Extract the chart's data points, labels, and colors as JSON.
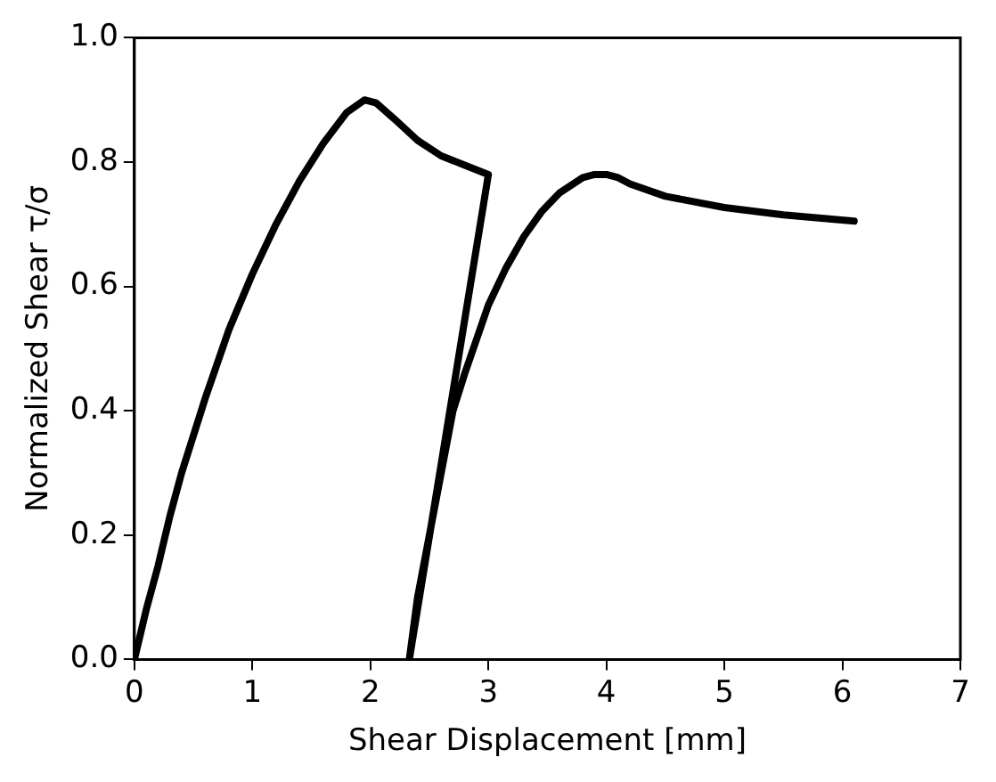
{
  "chart_data": {
    "type": "line",
    "xlabel": "Shear Displacement [mm]",
    "ylabel": "Normalized Shear τ/σ",
    "xlim": [
      0,
      7
    ],
    "ylim": [
      0,
      1
    ],
    "xticks": [
      0,
      1,
      2,
      3,
      4,
      5,
      6,
      7
    ],
    "yticks": [
      {
        "value": 0,
        "label": "0.0"
      },
      0.2,
      0.4,
      0.6,
      0.8,
      {
        "value": 1,
        "label": "1.0"
      }
    ],
    "grid": false,
    "legend": false,
    "marker": "none",
    "line_style": "solid",
    "series": [
      {
        "color": "#000000",
        "x": [
          0,
          0.1,
          0.2,
          0.3,
          0.4,
          0.6,
          0.8,
          1.0,
          1.2,
          1.4,
          1.6,
          1.8,
          1.95,
          2.05,
          2.2,
          2.4,
          2.6,
          2.8,
          3.0,
          2.33,
          2.4,
          2.5,
          2.6,
          2.7,
          2.8,
          3.0,
          3.15,
          3.3,
          3.45,
          3.6,
          3.8,
          3.9,
          4.0,
          4.1,
          4.2,
          4.5,
          5.0,
          5.5,
          6.1
        ],
        "values": [
          0,
          0.08,
          0.15,
          0.23,
          0.3,
          0.42,
          0.53,
          0.62,
          0.7,
          0.77,
          0.83,
          0.88,
          0.9,
          0.895,
          0.87,
          0.835,
          0.81,
          0.795,
          0.78,
          0,
          0.1,
          0.2,
          0.3,
          0.4,
          0.46,
          0.57,
          0.63,
          0.68,
          0.72,
          0.75,
          0.775,
          0.78,
          0.78,
          0.775,
          0.765,
          0.745,
          0.727,
          0.715,
          0.705
        ]
      }
    ]
  }
}
